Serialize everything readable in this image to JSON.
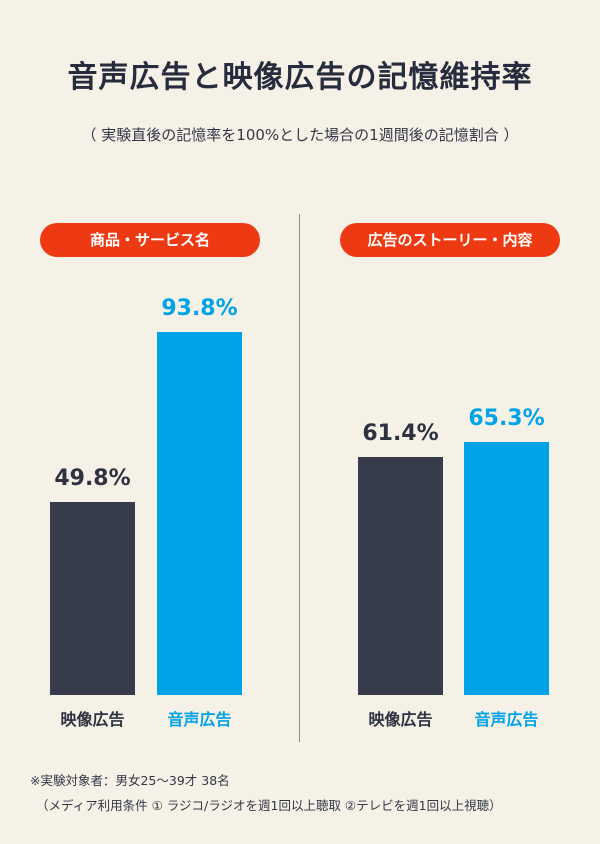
{
  "title": "音声広告と映像広告の記憶維持率",
  "subtitle": "（ 実験直後の記憶率を100%とした場合の1週間後の記憶割合 ）",
  "colors": {
    "video": "#373c4c",
    "audio": "#00a3e8",
    "pill": "#ee3a12",
    "background": "#f6f1e7"
  },
  "chart_data": [
    {
      "type": "bar",
      "title": "商品・サービス名",
      "categories": [
        "映像広告",
        "音声広告"
      ],
      "values": [
        49.8,
        93.8
      ],
      "value_labels": [
        "49.8%",
        "93.8%"
      ],
      "ylim": [
        0,
        100
      ]
    },
    {
      "type": "bar",
      "title": "広告のストーリー・内容",
      "categories": [
        "映像広告",
        "音声広告"
      ],
      "values": [
        61.4,
        65.3
      ],
      "value_labels": [
        "61.4%",
        "65.3%"
      ],
      "ylim": [
        0,
        100
      ]
    }
  ],
  "footnote": {
    "line1": "※実験対象者：男女25〜39才 38名",
    "line2": "（メディア利用条件 ① ラジコ/ラジオを週1回以上聴取 ②テレビを週1回以上視聴）"
  }
}
